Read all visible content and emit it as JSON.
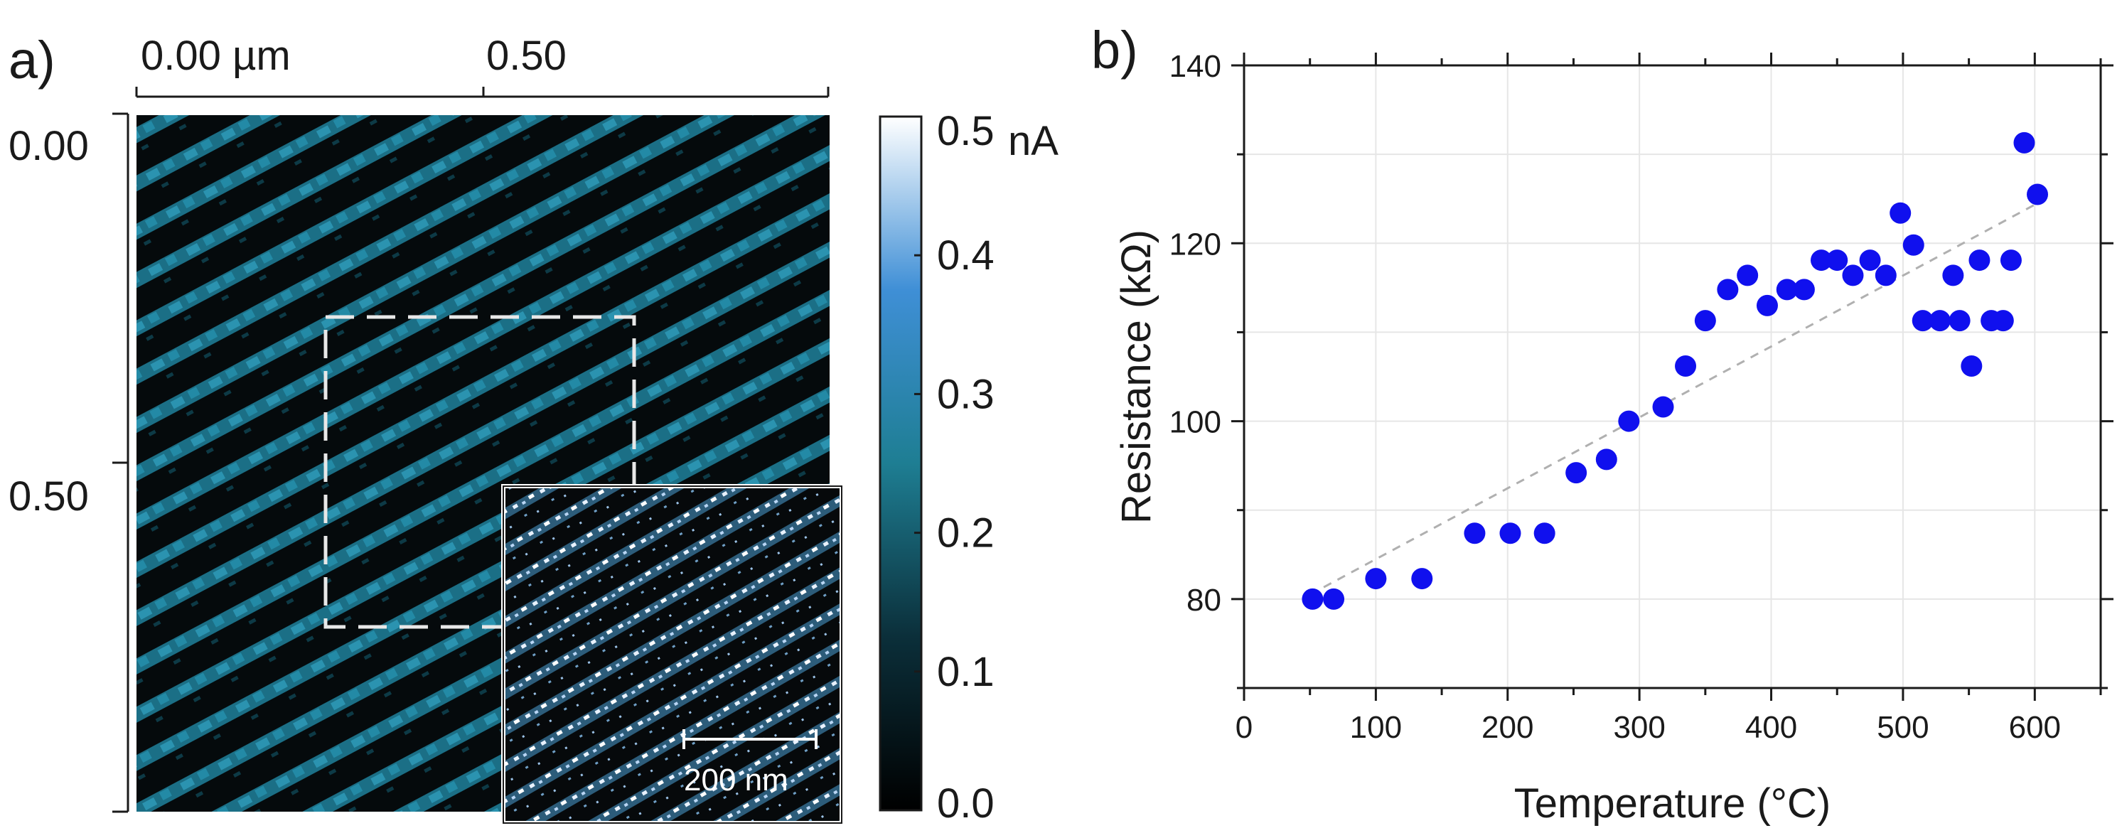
{
  "panel_a": {
    "label": "a)",
    "x_ticks": [
      "0.00 µm",
      "0.50"
    ],
    "y_ticks": [
      "0.00",
      "0.50"
    ],
    "colorbar": {
      "unit": "nA",
      "ticks": [
        "0.5",
        "0.4",
        "0.3",
        "0.2",
        "0.1",
        "0.0"
      ],
      "range": [
        0.0,
        0.5
      ],
      "colors": [
        "#000000",
        "#0b2f3a",
        "#1e7e93",
        "#3f8fd6",
        "#ffffff"
      ]
    },
    "inset": {
      "scale_bar_label": "200 nm"
    }
  },
  "panel_b": {
    "label": "b)"
  },
  "chart_data": {
    "type": "scatter",
    "xlabel": "Temperature (°C)",
    "ylabel": "Resistance (kΩ)",
    "xlim": [
      0,
      650
    ],
    "ylim": [
      70,
      140
    ],
    "xticks": [
      0,
      100,
      200,
      300,
      400,
      500,
      600
    ],
    "yticks": [
      80,
      100,
      120,
      140
    ],
    "grid": true,
    "marker_color": "#1010ee",
    "trend_color": "#b0b0b0",
    "points": [
      [
        52,
        80
      ],
      [
        68,
        80
      ],
      [
        100,
        82.3
      ],
      [
        135,
        82.3
      ],
      [
        175,
        87.4
      ],
      [
        202,
        87.4
      ],
      [
        228,
        87.4
      ],
      [
        252,
        94.2
      ],
      [
        275,
        95.7
      ],
      [
        292,
        100
      ],
      [
        318,
        101.6
      ],
      [
        335,
        106.2
      ],
      [
        350,
        111.3
      ],
      [
        367,
        114.8
      ],
      [
        382,
        116.4
      ],
      [
        397,
        113
      ],
      [
        412,
        114.8
      ],
      [
        425,
        114.8
      ],
      [
        438,
        118.1
      ],
      [
        450,
        118.1
      ],
      [
        462,
        116.4
      ],
      [
        475,
        118.1
      ],
      [
        487,
        116.4
      ],
      [
        498,
        123.4
      ],
      [
        508,
        119.8
      ],
      [
        515,
        111.3
      ],
      [
        528,
        111.3
      ],
      [
        538,
        116.4
      ],
      [
        543,
        111.3
      ],
      [
        552,
        106.2
      ],
      [
        558,
        118.1
      ],
      [
        567,
        111.3
      ],
      [
        576,
        111.3
      ],
      [
        582,
        118.1
      ],
      [
        592,
        131.3
      ],
      [
        602,
        125.5
      ]
    ],
    "trend": [
      [
        50,
        80.5
      ],
      [
        602,
        124.5
      ]
    ]
  }
}
